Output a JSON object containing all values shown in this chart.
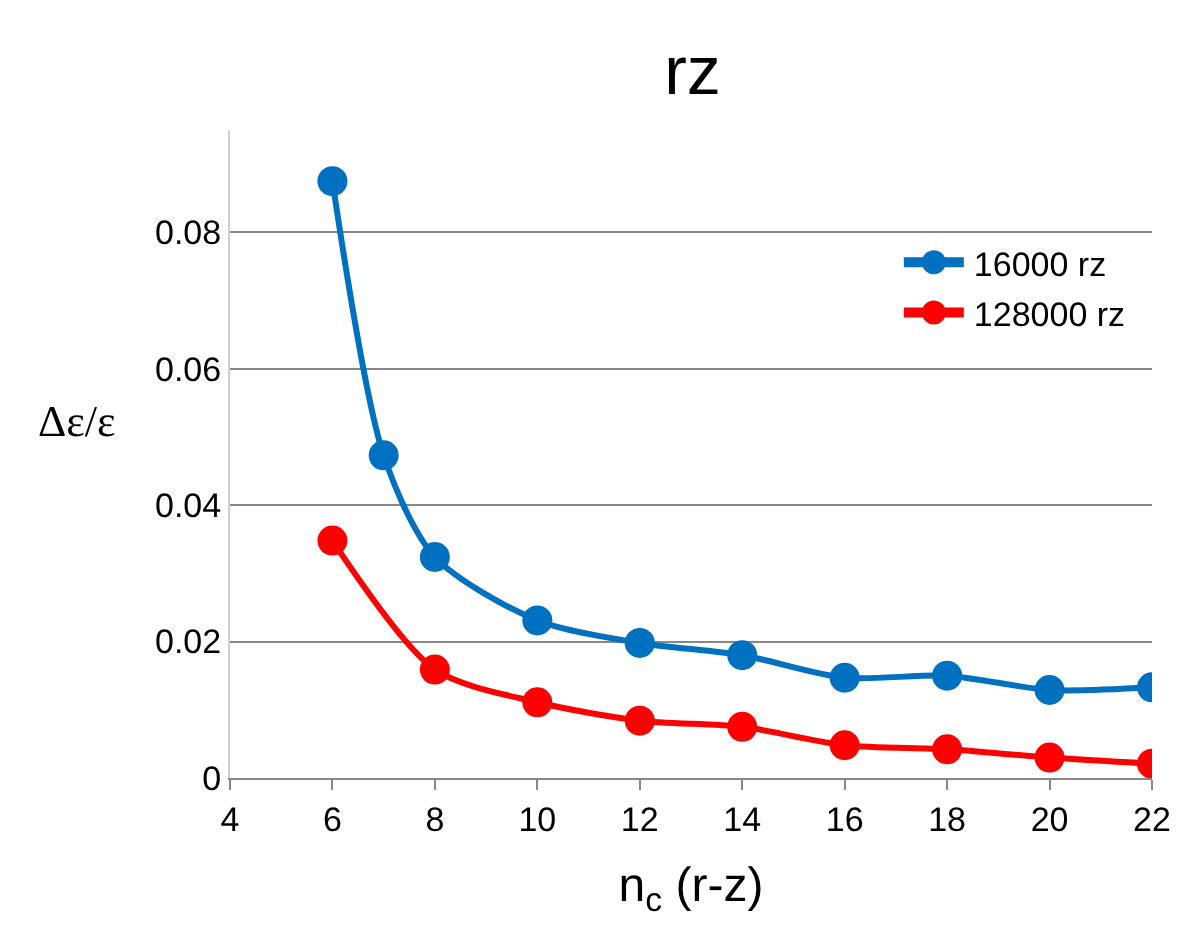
{
  "chart_data": {
    "type": "line",
    "title": "rz",
    "xlabel": "n$_{c}$ (r-z)",
    "ylabel": "Δε/ε",
    "xlim": [
      4,
      22
    ],
    "xticks": [
      4,
      6,
      8,
      10,
      12,
      14,
      16,
      18,
      20,
      22
    ],
    "ylim": [
      0,
      0.095
    ],
    "yticks": [
      0,
      0.02,
      0.04,
      0.06,
      0.08
    ],
    "grid": "y",
    "legend": "right",
    "marker": "circle",
    "line_style": "solid",
    "series": [
      {
        "name": "16000 rz",
        "color": "#0070c0",
        "x": [
          6,
          7,
          8,
          10,
          12,
          14,
          16,
          18,
          20,
          22
        ],
        "values": [
          0.0875,
          0.0473,
          0.0324,
          0.0231,
          0.0198,
          0.018,
          0.0147,
          0.015,
          0.0129,
          0.0133
        ]
      },
      {
        "name": "128000 rz",
        "color": "#ff0000",
        "x": [
          6,
          8,
          10,
          12,
          14,
          16,
          18,
          20,
          22
        ],
        "values": [
          0.0348,
          0.0159,
          0.0111,
          0.0084,
          0.0075,
          0.0048,
          0.0042,
          0.003,
          0.0021
        ]
      }
    ]
  }
}
